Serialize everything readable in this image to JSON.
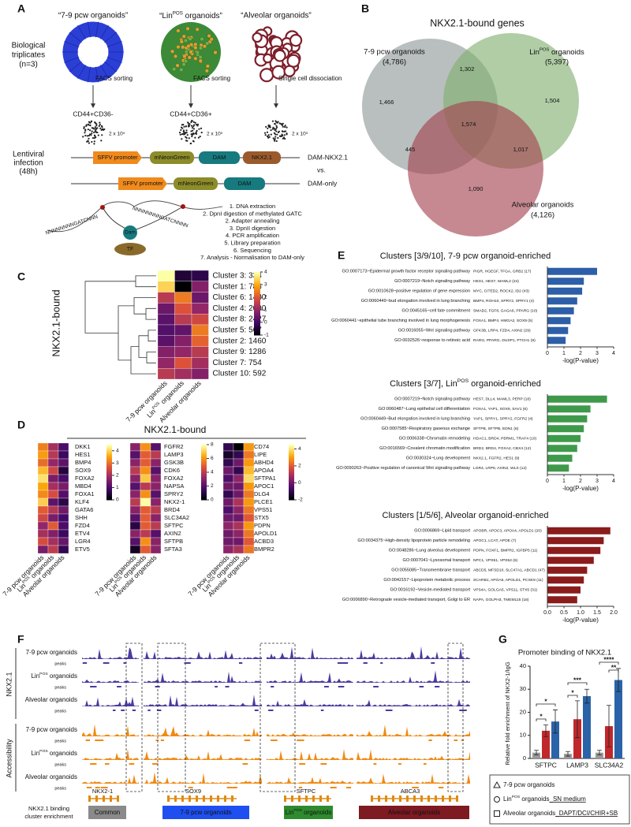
{
  "panel_a": {
    "label": "A",
    "organoids": [
      "“7-9 pcw organoids”",
      "“LinPOS organoids”",
      "“Alveolar organoids”"
    ],
    "replicates": [
      "Biological",
      "triplicates",
      "(n=3)"
    ],
    "methods": [
      "FACS sorting",
      "FACS sorting",
      "Single cell dissociation"
    ],
    "markers": [
      "CD44+CD36-",
      "CD44+CD36+"
    ],
    "cells": "2 x 10⁵",
    "infection": [
      "Lentiviral",
      "infection",
      "(48h)"
    ],
    "parts": [
      "SFFV promoter",
      "mNeonGreen",
      "DAM",
      "NKX2.1"
    ],
    "constructs": [
      "DAM-NKX2.1",
      "vs.",
      "DAM-only"
    ],
    "protein": [
      "Dam",
      "TF"
    ],
    "dna": [
      "NNNNNNNNGATCNNN",
      "NNNNNNNNGATCNNNN"
    ],
    "steps": [
      "1. DNA extraction",
      "2. DpnI digestion of methylated GATC",
      "2. Adapter annealing",
      "3. DpnII digestion",
      "4. PCR amplification",
      "5. Library preparation",
      "6. Sequencing",
      "7. Analysis - Normalisation to DAM-only"
    ]
  },
  "panel_b": {
    "label": "B",
    "title": "NKX2.1-bound genes",
    "sets": [
      {
        "name": "7-9 pcw organoids",
        "count": "(4,786)",
        "color": "#2b3fd6",
        "fill": "#8e9896"
      },
      {
        "name": "LinPOS organoids",
        "count": "(5,397)",
        "color": "#2f7d2a",
        "fill": "#7fae6e"
      },
      {
        "name": "Alveolar organoids",
        "count": "(4,126)",
        "color": "#7d1f2a",
        "fill": "#a3404e"
      }
    ],
    "regions": [
      "1,466",
      "1,302",
      "1,504",
      "1,574",
      "445",
      "1,017",
      "1,090"
    ]
  },
  "panel_c": {
    "label": "C",
    "title": "NKX2.1-bound",
    "rows": [
      "Cluster 3: 334",
      "Cluster 1: 786",
      "Cluster 6: 1430",
      "Cluster 4: 2090",
      "Cluster 8: 2427",
      "Cluster 5: 567",
      "Cluster 2: 1460",
      "Cluster 9: 1286",
      "Cluster 7: 754",
      "Cluster 10: 592"
    ],
    "columns": [
      "7-9 pcw organoids",
      "LinPOS organoids",
      "Alveolar organoids"
    ],
    "values": [
      [
        4,
        -0.5,
        -0.3
      ],
      [
        3.5,
        -1,
        0.8
      ],
      [
        1.5,
        2.5,
        0.5
      ],
      [
        0.5,
        2,
        1
      ],
      [
        0.3,
        1.5,
        1.8
      ],
      [
        0.2,
        0.4,
        2.5
      ],
      [
        0.3,
        0.8,
        2.2
      ],
      [
        0.8,
        1,
        1.5
      ],
      [
        1,
        2,
        1.2
      ],
      [
        1.5,
        1.2,
        0.8
      ]
    ],
    "clim": [
      -1,
      4
    ],
    "cticks": [
      4,
      3,
      2,
      1,
      0,
      -1
    ]
  },
  "colormap": [
    "#000004",
    "#420a68",
    "#932667",
    "#dd513a",
    "#fca50a",
    "#fcffa4"
  ],
  "panel_d": {
    "label": "D",
    "title": "NKX2.1-bound",
    "columns": [
      "7-9 pcw organoids",
      "LinPOS organoids",
      "Alveolar organoids"
    ],
    "heatmaps": [
      {
        "genes": [
          "DKK1",
          "HES1",
          "BMP4",
          "SOX9",
          "FOXA2",
          "MBD4",
          "FOXA1",
          "KLF4",
          "GATA6",
          "SHH",
          "FZD4",
          "ETV4",
          "LGR4",
          "ETV5"
        ],
        "values": [
          [
            3.2,
            2,
            1
          ],
          [
            3.5,
            2.2,
            0.8
          ],
          [
            3,
            1.8,
            1.2
          ],
          [
            3.8,
            2.5,
            0.5
          ],
          [
            4.2,
            1.5,
            1
          ],
          [
            3.6,
            2,
            1.5
          ],
          [
            3.3,
            2.6,
            1.1
          ],
          [
            4,
            1.2,
            0.6
          ],
          [
            2.8,
            2.2,
            1.4
          ],
          [
            2.5,
            1.5,
            0.9
          ],
          [
            1.8,
            2.8,
            1
          ],
          [
            2,
            1.6,
            0.8
          ],
          [
            2.6,
            2,
            1.3
          ],
          [
            1.5,
            2.3,
            0.7
          ]
        ],
        "clim": [
          0,
          4.5
        ],
        "cticks": [
          4,
          3,
          2,
          1,
          0
        ]
      },
      {
        "genes": [
          "FGFR2",
          "LAMP3",
          "GSK3B",
          "CDK6",
          "FOXA2",
          "NAPSA",
          "SPRY2",
          "NKX2-1",
          "BRD4",
          "SLC34A2",
          "SFTPC",
          "AXIN2",
          "SFTPB",
          "SFTA3"
        ],
        "values": [
          [
            3,
            6,
            2
          ],
          [
            2,
            5,
            4
          ],
          [
            3,
            5,
            3
          ],
          [
            4,
            6,
            2
          ],
          [
            3,
            7,
            3
          ],
          [
            2,
            4,
            3
          ],
          [
            3,
            6,
            2
          ],
          [
            4,
            8,
            3
          ],
          [
            3,
            5,
            4
          ],
          [
            2,
            5,
            3
          ],
          [
            1,
            5,
            4
          ],
          [
            3,
            4,
            2
          ],
          [
            2,
            6,
            3
          ],
          [
            0.5,
            5,
            3
          ]
        ],
        "clim": [
          0,
          8
        ],
        "cticks": [
          8,
          6,
          4,
          2,
          0
        ]
      },
      {
        "genes": [
          "CD74",
          "LIPE",
          "ABHD4",
          "APOA4",
          "SFTPA1",
          "APOC1",
          "DLG4",
          "PLCE1",
          "VPS51",
          "STX5",
          "PDPN",
          "APOLD1",
          "ACBD3",
          "BMPR2"
        ],
        "values": [
          [
            -1,
            -2,
            3
          ],
          [
            -1.5,
            -1,
            2.5
          ],
          [
            -1,
            0,
            3
          ],
          [
            0,
            -1,
            3.5
          ],
          [
            -0.5,
            0.5,
            4
          ],
          [
            0,
            0,
            3
          ],
          [
            -1,
            0,
            2.5
          ],
          [
            0,
            1,
            3
          ],
          [
            -0.5,
            0.5,
            2.5
          ],
          [
            0,
            0,
            2
          ],
          [
            0.5,
            1,
            3
          ],
          [
            0,
            0.5,
            2.5
          ],
          [
            0,
            0,
            2
          ],
          [
            0.5,
            1,
            2.5
          ]
        ],
        "clim": [
          -2,
          4.5
        ],
        "cticks": [
          4,
          2,
          0,
          -2
        ]
      }
    ]
  },
  "panel_e": {
    "label": "E",
    "xlabel": "-log(P-value)",
    "charts": [
      {
        "title": "Clusters [3/9/10], 7-9 pcw organoid-enriched",
        "color": "#2d5ea8",
        "terms": [
          "GO:0007173~Epidermal growth factor receptor signaling pathway",
          "GO:0007219~Notch signaling pathway",
          "GO:0010628~positive regulation of gene expression",
          "GO:0060449~bud elongation involved in lung branching",
          "GO:0045165~cell fate commitment",
          "GO:0060441~epithelial tube branching involved in lung morphogenesis",
          "GO:0016055~Wnt signaling pathway",
          "GO:0032526~response to retinoic acid"
        ],
        "genes": [
          "PIGR, HGEGF, TFGA, GRB2 (17)",
          "HES1, HES7, MAML2 (24)",
          "MYC, CITED2, ROCK2, ID2 (43)",
          "BMP4, ROH10, SPRY2, SPRY1 (4)",
          "SMAD2, FGF8, GAGA6, PPARG (10)",
          "FOXA1, BMP4, HMGA2, SOX9 (5)",
          "GFK3B, LRP4, FZD4, AXIN2 (29)",
          "RARG, PPARG, DUSP1, PTCH1 (9)"
        ],
        "values": [
          3,
          2.2,
          2.1,
          1.8,
          1.6,
          1.4,
          1.25,
          1.1
        ],
        "xlim": [
          0,
          4
        ],
        "xticks": [
          0,
          1,
          2,
          3,
          4
        ]
      },
      {
        "title": "Clusters [3/7], LinPOS organoid-enriched",
        "color": "#3e9a4a",
        "terms": [
          "GO:0007219~Notch signaling pathway",
          "GO:0060487~Lung epithelial cell differentiation",
          "GO:0060449~Bud elongation involved in lung branching",
          "GO:0007585~Respiratory gaseous exchange",
          "GO:0006338~Chromatin remodeling",
          "GO:0016569~Covalent chromatin modification",
          "GO:0030324~Lung development",
          "GO:0090263~Positive regulation of canonical Wnt signaling pathway"
        ],
        "genes": [
          "HES7, DLL4, MAML3, PERP (18)",
          "FOXA1, YAP1, SOX9, SAV1 (6)",
          "YAP1, SPRY1, SPRY2, FGFR2 (4)",
          "SFTPB, SFTPB, EDN1 (6)",
          "HDAC1, BRD4, PBRM1, TRAF4 (10)",
          "BRD2, BRD4, FOXA2, CBX4 (12)",
          "NKX2.1, FGFR2, HES1 (9)",
          "LGR4, LRP6, AXIN2, WLS (12)"
        ],
        "values": [
          3.6,
          2.6,
          2.4,
          2.2,
          2,
          1.8,
          1.5,
          1.3
        ],
        "xlim": [
          0,
          4
        ],
        "xticks": [
          0,
          1,
          2,
          3,
          4
        ]
      },
      {
        "title": "Clusters [1/5/6], Alveolar organoid-enriched",
        "color": "#8b1c1c",
        "terms": [
          "GO:0006869~Lipid transport",
          "GO:0034375~High-density lipoprotein particle remodeling",
          "GO:0048286~Lung alveolus development",
          "GO:0007041~Lysosomal transport",
          "GO:0055085~Transmembrane transport",
          "GO:0042157~Lipoprotein metabolic process",
          "GO:0016192~Vesicle-mediated transport",
          "GO:0006890~Retrograde vesicle-mediated transport, Golgi to ER"
        ],
        "genes": [
          "APOBR, APOC3, APOA4, APOLD1 (20)",
          "APOC1, LCAT, APOE (7)",
          "PDPN, FOXF1, BMPR2, IGFBP5 (11)",
          "NPC1, VPS51, VPS52 (6)",
          "ABCD5, MFSD10, SLC47A1, ABCD1 (47)",
          "SCARB1, APOA5, APOLD1, PCSK9 (11)",
          "VPS4A, GOLGA5, VPS11, STX5 (31)",
          "NAPA, GOLPH3, TMEM115 (18)"
        ],
        "values": [
          1.9,
          1.7,
          1.6,
          1.4,
          1.2,
          1.1,
          1,
          0.9
        ],
        "xlim": [
          0,
          2
        ],
        "xticks": [
          {
            "value": 0,
            "label": "0.0"
          },
          0.5,
          {
            "value": 1,
            "label": "1.0"
          },
          1.5,
          {
            "value": 2,
            "label": "2.0"
          }
        ]
      }
    ]
  },
  "panel_f": {
    "label": "F",
    "groups": [
      "NKX2.1",
      "Accessibility"
    ],
    "tracks": [
      "7-9 pcw organoids",
      "LinPOS organoids",
      "Alveolar organoids"
    ],
    "peaks": "peaks",
    "genes": [
      "NKX2-1",
      "SOX9",
      "SFTPC",
      "ABCA3"
    ],
    "legend_title": [
      "NKX2.1 binding",
      "cluster enrichment"
    ],
    "clusters": [
      {
        "name": "Common",
        "color": "#8a8a8a"
      },
      {
        "name": "7-9 pcw organoids",
        "color": "#1f4ff0"
      },
      {
        "name": "LinPOS organoids",
        "color": "#2e8b2e"
      },
      {
        "name": "Alveolar organoids",
        "color": "#7d1a22"
      }
    ]
  },
  "panel_g": {
    "label": "G",
    "title": "Promoter binding of NKX2.1",
    "ylabel": "Relative fold enrichment of NKX2-1/IgG",
    "categories": [
      "SFTPC",
      "LAMP3",
      "SLC34A2"
    ],
    "series": [
      {
        "name": "7-9 pcw organoids",
        "color": "#9a9a9a",
        "values": [
          2.5,
          2,
          2.5
        ],
        "errors": [
          1,
          1,
          1
        ]
      },
      {
        "name": "LinPOS organoids",
        "condition": "_SN medium",
        "condition_color": "#e02020",
        "color": "#c0282c",
        "values": [
          12,
          17,
          14
        ],
        "errors": [
          2.5,
          8,
          9
        ]
      },
      {
        "name": "Alveolar organoids",
        "condition": "_DAPT/DCI/CHIR+SB",
        "condition_color": "#2040d0",
        "color": "#2a63a8",
        "values": [
          16,
          27,
          34
        ],
        "errors": [
          5,
          3,
          5
        ]
      }
    ],
    "ylim": [
      0,
      40
    ],
    "yticks": [
      0,
      10,
      20,
      30,
      40
    ],
    "significance": [
      "*",
      "*",
      "*",
      "***",
      "****",
      "**"
    ]
  }
}
